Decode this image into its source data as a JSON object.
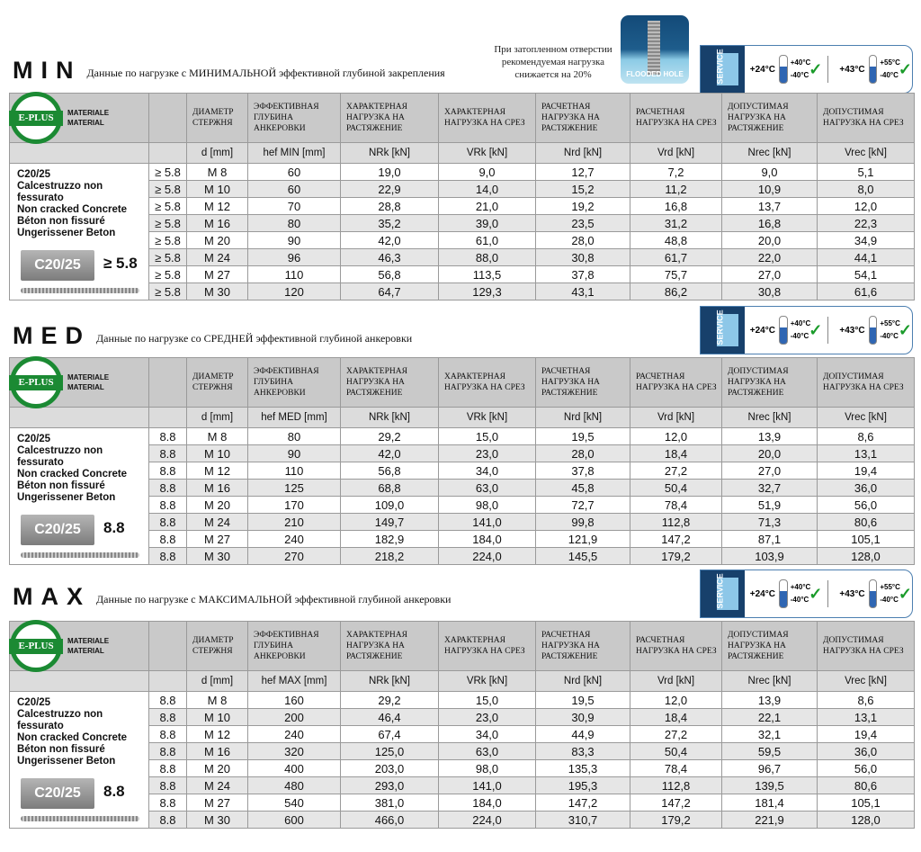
{
  "note": "При затопленном отверстии рекомендуемая нагрузка снижается на 20%",
  "flooded_hole_label": "FLOODED HOLE",
  "service": {
    "label": "SERVICE",
    "temp1": "+24°C",
    "max1": "+40°C",
    "min1": "-40°C",
    "temp2": "+43°C",
    "max2": "+55°C",
    "min2": "-40°C"
  },
  "material_label": [
    "MATERIALE",
    "MATERIAL"
  ],
  "logo": "E-PLUS",
  "material_lines": [
    "C20/25",
    "Calcestruzzo non fessurato",
    "Non cracked Concrete",
    "Béton non fissuré",
    "Ungerissener Beton"
  ],
  "block_label": "C20/25",
  "headers": [
    "ДИАМЕТР СТЕРЖНЯ",
    "ЭФФЕКТИВНАЯ ГЛУБИНА АНКЕРОВКИ",
    "ХАРАКТЕРНАЯ НАГРУЗКА НА РАСТЯЖЕНИЕ",
    "ХАРАКТЕРНАЯ НАГРУЗКА НА СРЕЗ",
    "РАСЧЕТНАЯ НАГРУЗКА НА РАСТЯЖЕНИЕ",
    "РАСЧЕТНАЯ НАГРУЗКА НА СРЕЗ",
    "ДОПУСТИМАЯ НАГРУЗКА НА РАСТЯЖЕНИЕ",
    "ДОПУСТИМАЯ НАГРУЗКА НА СРЕЗ"
  ],
  "sections": [
    {
      "title": "MIN",
      "subtitle": "Данные по нагрузке с МИНИМАЛЬНОЙ эффективной глубиной закрепления",
      "grade_big": "≥ 5.8",
      "units": [
        "d [mm]",
        "hef MIN [mm]",
        "NRk [kN]",
        "VRk [kN]",
        "Nrd [kN]",
        "Vrd [kN]",
        "Nrec [kN]",
        "Vrec [kN]"
      ],
      "rows": [
        [
          "≥ 5.8",
          "M 8",
          "60",
          "19,0",
          "9,0",
          "12,7",
          "7,2",
          "9,0",
          "5,1"
        ],
        [
          "≥ 5.8",
          "M 10",
          "60",
          "22,9",
          "14,0",
          "15,2",
          "11,2",
          "10,9",
          "8,0"
        ],
        [
          "≥ 5.8",
          "M 12",
          "70",
          "28,8",
          "21,0",
          "19,2",
          "16,8",
          "13,7",
          "12,0"
        ],
        [
          "≥ 5.8",
          "M 16",
          "80",
          "35,2",
          "39,0",
          "23,5",
          "31,2",
          "16,8",
          "22,3"
        ],
        [
          "≥ 5.8",
          "M 20",
          "90",
          "42,0",
          "61,0",
          "28,0",
          "48,8",
          "20,0",
          "34,9"
        ],
        [
          "≥ 5.8",
          "M 24",
          "96",
          "46,3",
          "88,0",
          "30,8",
          "61,7",
          "22,0",
          "44,1"
        ],
        [
          "≥ 5.8",
          "M 27",
          "110",
          "56,8",
          "113,5",
          "37,8",
          "75,7",
          "27,0",
          "54,1"
        ],
        [
          "≥ 5.8",
          "M 30",
          "120",
          "64,7",
          "129,3",
          "43,1",
          "86,2",
          "30,8",
          "61,6"
        ]
      ]
    },
    {
      "title": "MED",
      "subtitle": "Данные по нагрузке со СРЕДНЕЙ эффективной глубиной анкеровки",
      "grade_big": "8.8",
      "units": [
        "d [mm]",
        "hef MED [mm]",
        "NRk [kN]",
        "VRk [kN]",
        "Nrd [kN]",
        "Vrd [kN]",
        "Nrec [kN]",
        "Vrec [kN]"
      ],
      "rows": [
        [
          "8.8",
          "M 8",
          "80",
          "29,2",
          "15,0",
          "19,5",
          "12,0",
          "13,9",
          "8,6"
        ],
        [
          "8.8",
          "M 10",
          "90",
          "42,0",
          "23,0",
          "28,0",
          "18,4",
          "20,0",
          "13,1"
        ],
        [
          "8.8",
          "M 12",
          "110",
          "56,8",
          "34,0",
          "37,8",
          "27,2",
          "27,0",
          "19,4"
        ],
        [
          "8.8",
          "M 16",
          "125",
          "68,8",
          "63,0",
          "45,8",
          "50,4",
          "32,7",
          "36,0"
        ],
        [
          "8.8",
          "M 20",
          "170",
          "109,0",
          "98,0",
          "72,7",
          "78,4",
          "51,9",
          "56,0"
        ],
        [
          "8.8",
          "M 24",
          "210",
          "149,7",
          "141,0",
          "99,8",
          "112,8",
          "71,3",
          "80,6"
        ],
        [
          "8.8",
          "M 27",
          "240",
          "182,9",
          "184,0",
          "121,9",
          "147,2",
          "87,1",
          "105,1"
        ],
        [
          "8.8",
          "M 30",
          "270",
          "218,2",
          "224,0",
          "145,5",
          "179,2",
          "103,9",
          "128,0"
        ]
      ]
    },
    {
      "title": "MAX",
      "subtitle": "Данные по нагрузке с МАКСИМАЛЬНОЙ эффективной глубиной анкеровки",
      "grade_big": "8.8",
      "units": [
        "d [mm]",
        "hef MAX [mm]",
        "NRk [kN]",
        "VRk [kN]",
        "Nrd [kN]",
        "Vrd [kN]",
        "Nrec [kN]",
        "Vrec [kN]"
      ],
      "rows": [
        [
          "8.8",
          "M 8",
          "160",
          "29,2",
          "15,0",
          "19,5",
          "12,0",
          "13,9",
          "8,6"
        ],
        [
          "8.8",
          "M 10",
          "200",
          "46,4",
          "23,0",
          "30,9",
          "18,4",
          "22,1",
          "13,1"
        ],
        [
          "8.8",
          "M 12",
          "240",
          "67,4",
          "34,0",
          "44,9",
          "27,2",
          "32,1",
          "19,4"
        ],
        [
          "8.8",
          "M 16",
          "320",
          "125,0",
          "63,0",
          "83,3",
          "50,4",
          "59,5",
          "36,0"
        ],
        [
          "8.8",
          "M 20",
          "400",
          "203,0",
          "98,0",
          "135,3",
          "78,4",
          "96,7",
          "56,0"
        ],
        [
          "8.8",
          "M 24",
          "480",
          "293,0",
          "141,0",
          "195,3",
          "112,8",
          "139,5",
          "80,6"
        ],
        [
          "8.8",
          "M 27",
          "540",
          "381,0",
          "184,0",
          "147,2",
          "147,2",
          "181,4",
          "105,1"
        ],
        [
          "8.8",
          "M 30",
          "600",
          "466,0",
          "224,0",
          "310,7",
          "179,2",
          "221,9",
          "128,0"
        ]
      ]
    }
  ]
}
